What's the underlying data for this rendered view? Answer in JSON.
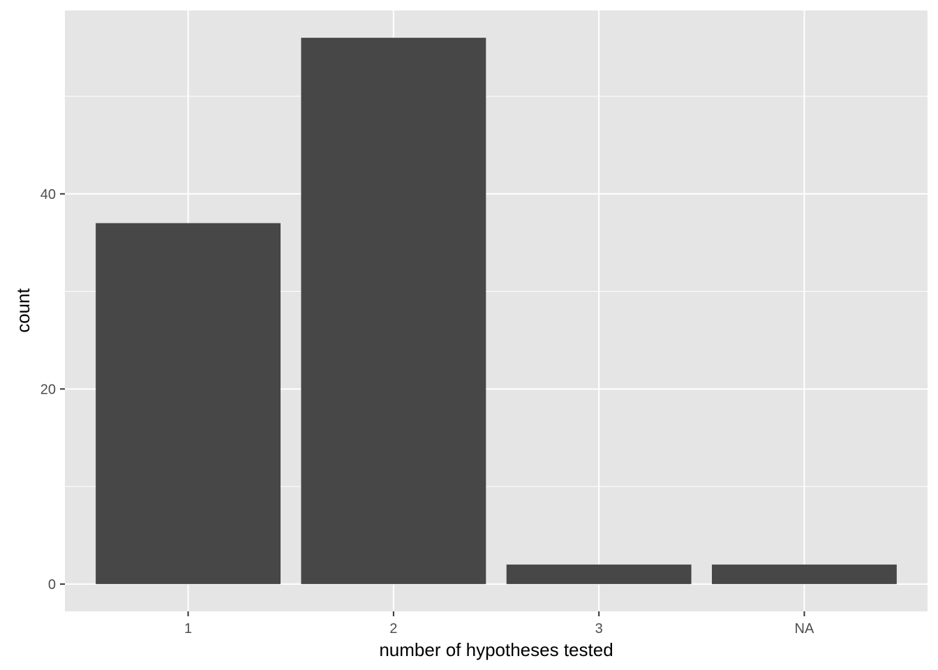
{
  "chart_data": {
    "type": "bar",
    "categories": [
      "1",
      "2",
      "3",
      "NA"
    ],
    "values": [
      37,
      56,
      2,
      2
    ],
    "title": "",
    "xlabel": "number of hypotheses tested",
    "ylabel": "count",
    "ylim": [
      -2.8,
      58.8
    ],
    "yticks": [
      0,
      20,
      40
    ],
    "minor_yticks": [
      10,
      30,
      50
    ],
    "grid": true,
    "legend": "none",
    "colors": {
      "bar": "#474747",
      "panel": "#e5e5e5",
      "grid": "#ffffff",
      "tick_text": "#4d4d4d",
      "title_text": "#000000"
    }
  }
}
